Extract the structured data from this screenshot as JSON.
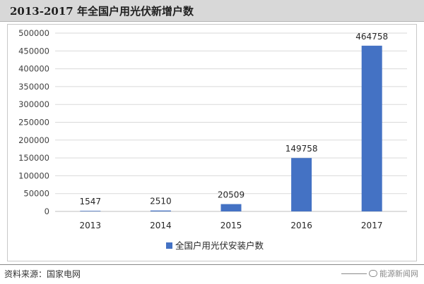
{
  "header": {
    "title": "2013-2017 年全国户用光伏新增户数"
  },
  "chart_data": {
    "type": "bar",
    "categories": [
      "2013",
      "2014",
      "2015",
      "2016",
      "2017"
    ],
    "series": [
      {
        "name": "全国户用光伏安装户数",
        "values": [
          1547,
          2510,
          20509,
          149758,
          464758
        ],
        "color": "#4472c4"
      }
    ],
    "data_labels": [
      "1547",
      "2510",
      "20509",
      "149758",
      "464758"
    ],
    "yticks": [
      "0",
      "50000",
      "100000",
      "150000",
      "200000",
      "250000",
      "300000",
      "350000",
      "400000",
      "450000",
      "500000"
    ],
    "ylim": [
      0,
      500000
    ],
    "grid": true,
    "legend_position": "bottom-center"
  },
  "footer": {
    "source": "资料来源：国家电网",
    "watermark": "能源新闻网"
  }
}
